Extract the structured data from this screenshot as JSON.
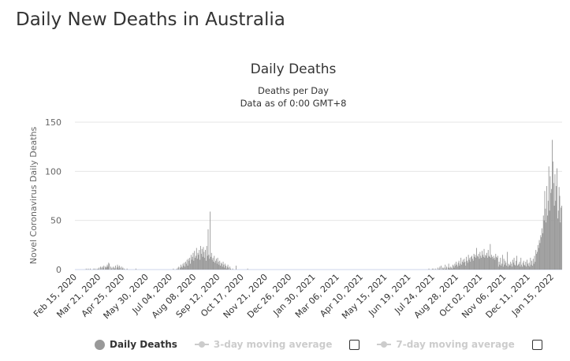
{
  "page": {
    "title": "Daily New Deaths in Australia"
  },
  "legend": {
    "daily_deaths": "Daily Deaths",
    "avg3": "3-day moving average",
    "avg7": "7-day moving average"
  },
  "colors": {
    "bar": "#999999",
    "grid": "#e6e6e6",
    "axis": "#ccd6eb"
  },
  "chart_data": {
    "type": "bar",
    "title": "Daily Deaths",
    "subtitle": [
      "Deaths per Day",
      "Data as of 0:00 GMT+8"
    ],
    "xlabel": "",
    "ylabel": "Novel Coronavirus Daily Deaths",
    "ylim": [
      0,
      150
    ],
    "yticks": [
      "0",
      "50",
      "100",
      "150"
    ],
    "ytick_values": [
      0,
      50,
      100,
      150
    ],
    "grid": true,
    "legend_placement": "bottom",
    "start_date": "2020-02-15",
    "x_tick_interval_days": 35,
    "x_tick_labels": [
      "Feb 15, 2020",
      "Mar 21, 2020",
      "Apr 25, 2020",
      "May 30, 2020",
      "Jul 04, 2020",
      "Aug 08, 2020",
      "Sep 12, 2020",
      "Oct 17, 2020",
      "Nov 21, 2020",
      "Dec 26, 2020",
      "Jan 30, 2021",
      "Mar 06, 2021",
      "Apr 10, 2021",
      "May 15, 2021",
      "Jun 19, 2021",
      "Jul 24, 2021",
      "Aug 28, 2021",
      "Oct 02, 2021",
      "Nov 06, 2021",
      "Dec 11, 2021",
      "Jan 15, 2022"
    ],
    "series": [
      {
        "name": "Daily Deaths",
        "values": [
          0,
          0,
          0,
          0,
          0,
          0,
          0,
          0,
          0,
          0,
          0,
          0,
          0,
          0,
          0,
          0,
          1,
          0,
          0,
          1,
          0,
          0,
          1,
          0,
          0,
          0,
          0,
          1,
          0,
          1,
          0,
          0,
          1,
          0,
          1,
          2,
          0,
          3,
          2,
          0,
          3,
          2,
          4,
          0,
          3,
          2,
          3,
          5,
          3,
          7,
          6,
          0,
          3,
          1,
          2,
          0,
          3,
          2,
          1,
          4,
          0,
          2,
          5,
          3,
          1,
          4,
          2,
          0,
          3,
          1,
          2,
          0,
          1,
          0,
          0,
          0,
          1,
          0,
          0,
          0,
          0,
          0,
          0,
          0,
          0,
          0,
          0,
          0,
          0,
          1,
          0,
          0,
          0,
          0,
          0,
          0,
          0,
          0,
          0,
          0,
          0,
          0,
          0,
          0,
          0,
          0,
          0,
          0,
          0,
          0,
          0,
          0,
          0,
          0,
          0,
          0,
          0,
          0,
          0,
          0,
          0,
          0,
          0,
          0,
          0,
          0,
          0,
          0,
          0,
          0,
          0,
          0,
          0,
          0,
          0,
          0,
          0,
          0,
          0,
          0,
          0,
          0,
          0,
          0,
          1,
          0,
          0,
          0,
          0,
          1,
          0,
          2,
          3,
          0,
          2,
          5,
          3,
          2,
          6,
          4,
          7,
          3,
          8,
          6,
          10,
          4,
          11,
          9,
          12,
          6,
          15,
          10,
          13,
          17,
          9,
          19,
          12,
          14,
          22,
          11,
          17,
          15,
          20,
          10,
          24,
          16,
          21,
          13,
          23,
          18,
          12,
          20,
          9,
          24,
          14,
          41,
          15,
          11,
          59,
          13,
          17,
          10,
          12,
          8,
          14,
          7,
          9,
          11,
          6,
          12,
          8,
          5,
          9,
          4,
          7,
          6,
          3,
          8,
          5,
          2,
          6,
          4,
          1,
          3,
          5,
          2,
          0,
          3,
          1,
          0,
          0,
          1,
          0,
          0,
          0,
          0,
          4,
          0,
          0,
          0,
          0,
          0,
          0,
          0,
          0,
          0,
          0,
          0,
          0,
          0,
          0,
          0,
          0,
          1,
          0,
          0,
          0,
          0,
          0,
          0,
          0,
          0,
          0,
          0,
          0,
          0,
          0,
          0,
          0,
          0,
          0,
          0,
          0,
          0,
          0,
          0,
          0,
          0,
          0,
          0,
          0,
          0,
          0,
          0,
          0,
          0,
          0,
          0,
          0,
          0,
          0,
          0,
          0,
          0,
          0,
          0,
          0,
          0,
          0,
          0,
          0,
          0,
          0,
          0,
          0,
          0,
          0,
          0,
          0,
          0,
          0,
          0,
          0,
          0,
          0,
          0,
          0,
          0,
          0,
          0,
          0,
          0,
          0,
          0,
          0,
          0,
          0,
          0,
          0,
          0,
          0,
          0,
          0,
          0,
          0,
          0,
          0,
          0,
          0,
          0,
          0,
          0,
          0,
          0,
          0,
          0,
          0,
          0,
          0,
          0,
          0,
          0,
          0,
          0,
          0,
          0,
          0,
          0,
          0,
          0,
          0,
          0,
          0,
          0,
          0,
          0,
          0,
          0,
          0,
          0,
          0,
          0,
          0,
          0,
          0,
          0,
          0,
          0,
          0,
          0,
          0,
          0,
          0,
          0,
          0,
          0,
          0,
          0,
          0,
          0,
          0,
          0,
          0,
          0,
          0,
          0,
          0,
          0,
          0,
          0,
          0,
          0,
          0,
          0,
          0,
          0,
          0,
          0,
          0,
          0,
          0,
          0,
          0,
          0,
          0,
          0,
          0,
          0,
          0,
          0,
          0,
          0,
          0,
          0,
          0,
          0,
          0,
          0,
          0,
          0,
          0,
          0,
          0,
          0,
          0,
          0,
          0,
          0,
          0,
          0,
          0,
          0,
          0,
          0,
          0,
          0,
          0,
          0,
          0,
          0,
          0,
          0,
          0,
          0,
          0,
          0,
          0,
          0,
          0,
          0,
          0,
          0,
          0,
          0,
          0,
          0,
          0,
          0,
          0,
          0,
          0,
          0,
          0,
          0,
          0,
          0,
          0,
          0,
          0,
          0,
          0,
          0,
          0,
          0,
          0,
          0,
          0,
          0,
          0,
          0,
          0,
          0,
          0,
          0,
          0,
          0,
          0,
          0,
          0,
          0,
          0,
          0,
          0,
          0,
          0,
          0,
          0,
          0,
          0,
          0,
          0,
          0,
          0,
          0,
          0,
          0,
          0,
          0,
          0,
          1,
          0,
          0,
          0,
          0,
          1,
          0,
          1,
          0,
          0,
          1,
          0,
          0,
          2,
          0,
          1,
          3,
          0,
          4,
          0,
          2,
          1,
          2,
          0,
          5,
          1,
          3,
          0,
          2,
          6,
          2,
          1,
          3,
          2,
          1,
          5,
          4,
          2,
          6,
          4,
          8,
          5,
          3,
          7,
          9,
          4,
          6,
          12,
          5,
          8,
          10,
          7,
          11,
          8,
          4,
          13,
          9,
          7,
          15,
          10,
          12,
          8,
          13,
          14,
          11,
          9,
          16,
          13,
          15,
          12,
          22,
          14,
          13,
          16,
          11,
          18,
          14,
          12,
          19,
          15,
          13,
          21,
          12,
          15,
          14,
          17,
          12,
          20,
          14,
          13,
          26,
          12,
          15,
          13,
          11,
          14,
          12,
          10,
          16,
          13,
          12,
          14,
          3,
          8,
          5,
          12,
          4,
          6,
          15,
          3,
          11,
          5,
          9,
          7,
          4,
          18,
          3,
          6,
          5,
          4,
          8,
          6,
          3,
          10,
          7,
          12,
          5,
          4,
          9,
          14,
          4,
          5,
          6,
          8,
          3,
          12,
          5,
          3,
          7,
          9,
          5,
          4,
          8,
          3,
          10,
          6,
          4,
          7,
          3,
          12,
          5,
          9,
          4,
          11,
          6,
          14,
          8,
          20,
          16,
          18,
          25,
          22,
          30,
          27,
          35,
          33,
          42,
          37,
          55,
          50,
          80,
          62,
          48,
          85,
          55,
          70,
          105,
          60,
          95,
          78,
          82,
          132,
          110,
          88,
          65,
          97,
          70,
          85,
          103,
          52,
          60,
          84,
          75,
          48,
          63,
          65
        ]
      }
    ]
  }
}
